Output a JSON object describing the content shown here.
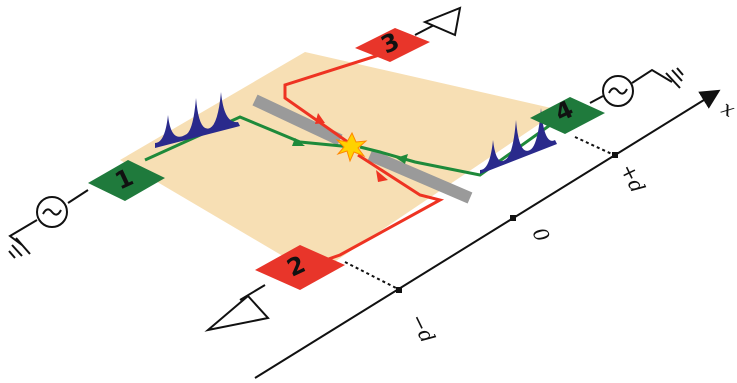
{
  "contacts": {
    "c1": {
      "label": "1",
      "color": "#1f7a3c"
    },
    "c2": {
      "label": "2",
      "color": "#e8352a"
    },
    "c3": {
      "label": "3",
      "color": "#e8352a"
    },
    "c4": {
      "label": "4",
      "color": "#1f7a3c"
    }
  },
  "axis": {
    "name": "x",
    "ticks": {
      "minus_d": "−d",
      "zero": "0",
      "plus_d": "+d"
    }
  },
  "colors": {
    "sample": "#f7dfb4",
    "constriction": "#9a9a9a",
    "edge_green": "#1e8a3a",
    "edge_red": "#ee3322",
    "pulse": "#2a2a8c",
    "collision": "#ffd200"
  },
  "icons": [
    "ac-source-icon",
    "ground-icon",
    "detector-icon",
    "collision-star-icon",
    "arrow-icon"
  ]
}
